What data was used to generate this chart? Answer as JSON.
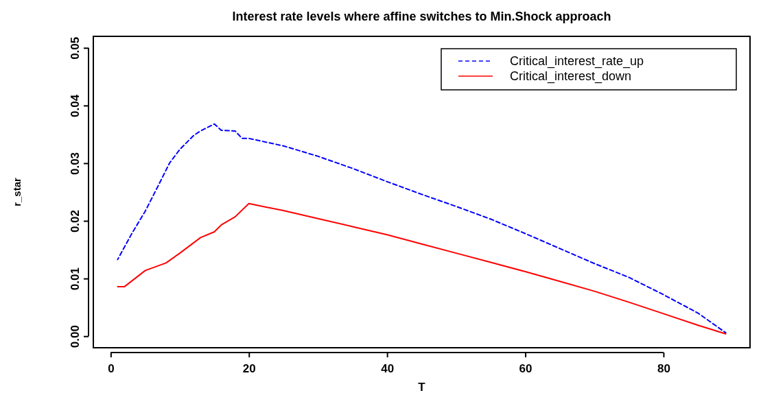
{
  "chart_data": {
    "type": "line",
    "title": "Interest rate levels where affine switches to Min.Shock approach",
    "xlabel": "T",
    "ylabel": "r_star",
    "xlim": [
      -2.52,
      92.52
    ],
    "xticks": [
      0,
      20,
      40,
      60,
      80
    ],
    "ylim": [
      -0.002,
      0.052
    ],
    "yticks": [
      {
        "value": 0,
        "label": "0.00"
      },
      0.01,
      0.02,
      0.03,
      0.04,
      0.05
    ],
    "legend": "top right",
    "grid": false,
    "series": [
      {
        "name": "Critical_interest_rate_up",
        "color": "#0000ff",
        "line_style": "dashed",
        "x": [
          1,
          3,
          5,
          7,
          8.5,
          10,
          12,
          13,
          15,
          16,
          18,
          19,
          20,
          25,
          30,
          35,
          40,
          45,
          50,
          55,
          60,
          65,
          70,
          75,
          80,
          85,
          89
        ],
        "values": [
          0.0133,
          0.0177,
          0.0217,
          0.0264,
          0.03,
          0.0324,
          0.0348,
          0.0356,
          0.0368,
          0.0357,
          0.0356,
          0.0343,
          0.0343,
          0.033,
          0.0312,
          0.0291,
          0.0268,
          0.0246,
          0.0225,
          0.0203,
          0.0178,
          0.0152,
          0.0126,
          0.0102,
          0.0072,
          0.004,
          0.0006
        ]
      },
      {
        "name": "Critical_interest_down",
        "color": "#ff0000",
        "line_style": "solid",
        "x": [
          1,
          2,
          5,
          8,
          10,
          13,
          15,
          16,
          18,
          20,
          22,
          25,
          30,
          35,
          40,
          45,
          50,
          55,
          60,
          65,
          70,
          75,
          80,
          85,
          89
        ],
        "values": [
          0.0086,
          0.0086,
          0.0114,
          0.0127,
          0.0144,
          0.0171,
          0.0181,
          0.0193,
          0.0207,
          0.023,
          0.0225,
          0.0218,
          0.0204,
          0.019,
          0.0176,
          0.016,
          0.0144,
          0.0128,
          0.0112,
          0.0095,
          0.0078,
          0.0059,
          0.0039,
          0.0019,
          0.0004
        ]
      }
    ]
  }
}
